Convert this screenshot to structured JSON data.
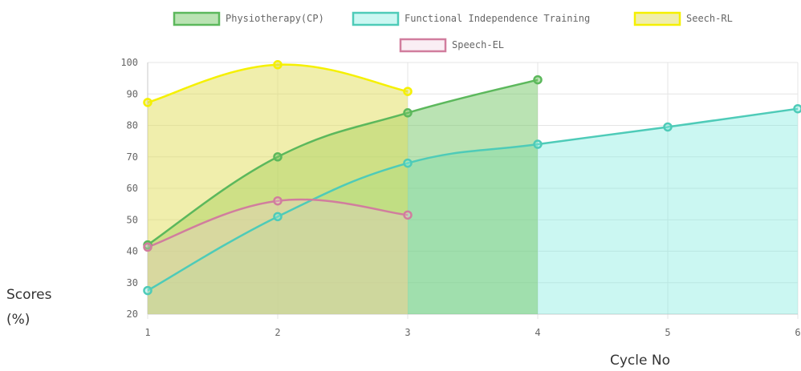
{
  "chart_data": {
    "type": "area",
    "x": [
      1,
      2,
      3,
      4,
      5,
      6
    ],
    "xlabel": "Cycle No",
    "ylabel": "Scores (%)",
    "ylim": [
      20,
      100
    ],
    "yticks": [
      20,
      30,
      40,
      50,
      60,
      70,
      80,
      90,
      100
    ],
    "xticks": [
      1,
      2,
      3,
      4,
      5,
      6
    ],
    "grid": true,
    "legend_position": "top",
    "series": [
      {
        "name": "Physiotherapy(CP)",
        "x": [
          1,
          2,
          3,
          4
        ],
        "values": [
          42,
          70,
          84,
          94.5
        ],
        "line": "#5cb85c",
        "fill": "rgba(118,199,103,0.50)"
      },
      {
        "name": "Functional Independence Training",
        "x": [
          1,
          2,
          3,
          4,
          5,
          6
        ],
        "values": [
          27.5,
          51,
          68,
          74,
          79.5,
          85.3
        ],
        "line": "#4ecbb8",
        "fill": "rgba(130,235,225,0.42)"
      },
      {
        "name": "Seech-RL",
        "x": [
          1,
          2,
          3
        ],
        "values": [
          87.3,
          99.3,
          90.8
        ],
        "line": "#f5f000",
        "fill": "rgba(225,222,90,0.50)"
      },
      {
        "name": "Speech-EL",
        "x": [
          1,
          2,
          3
        ],
        "values": [
          41.3,
          56,
          51.5
        ],
        "line": "#d17d9e",
        "fill": "rgba(240,200,220,0.30)"
      }
    ]
  }
}
